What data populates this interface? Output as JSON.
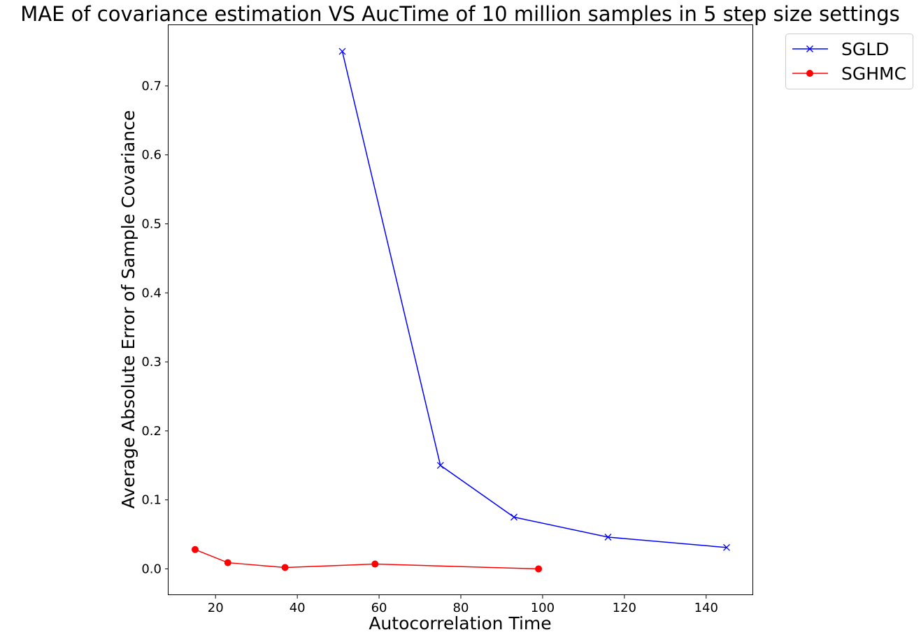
{
  "chart_data": {
    "type": "line",
    "title": "MAE of covariance estimation VS AucTime of 10 million samples in 5 step size settings",
    "xlabel": "Autocorrelation Time",
    "ylabel": "Average Absolute Error of Sample Covariance",
    "xlim": [
      8.5,
      151.5
    ],
    "ylim": [
      -0.038,
      0.788
    ],
    "xticks": [
      20,
      40,
      60,
      80,
      100,
      120,
      140
    ],
    "xtick_labels": [
      "20",
      "40",
      "60",
      "80",
      "100",
      "120",
      "140"
    ],
    "yticks": [
      0.0,
      0.1,
      0.2,
      0.3,
      0.4,
      0.5,
      0.6,
      0.7
    ],
    "ytick_labels": [
      "0.0",
      "0.1",
      "0.2",
      "0.3",
      "0.4",
      "0.5",
      "0.6",
      "0.7"
    ],
    "grid": false,
    "legend_position": "outside-top-right",
    "series": [
      {
        "name": "SGLD",
        "color": "#0000ff",
        "marker": "x",
        "x": [
          51,
          75,
          93,
          116,
          145
        ],
        "y": [
          0.75,
          0.15,
          0.075,
          0.046,
          0.031
        ]
      },
      {
        "name": "SGHMC",
        "color": "#ff0000",
        "marker": "circle",
        "x": [
          15,
          23,
          37,
          59,
          99
        ],
        "y": [
          0.028,
          0.009,
          0.002,
          0.007,
          0.0
        ]
      }
    ]
  }
}
